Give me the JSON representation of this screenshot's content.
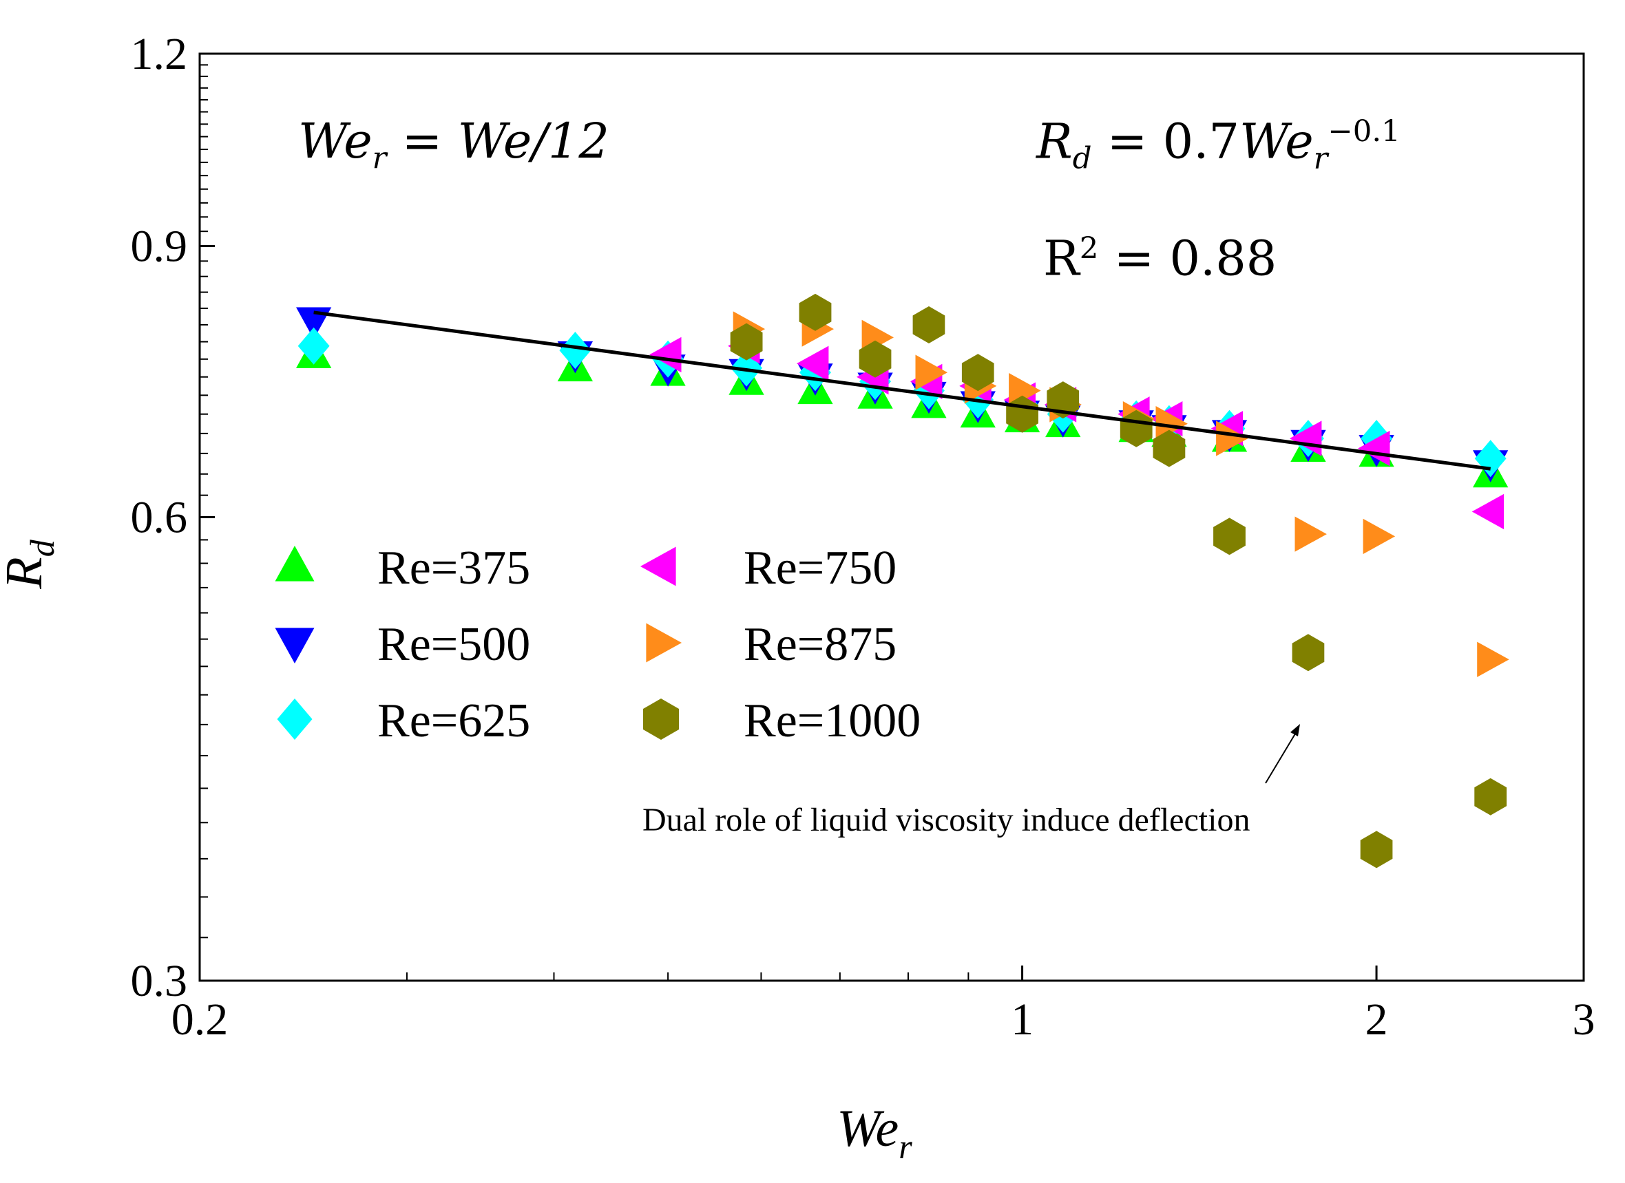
{
  "chart_data": {
    "type": "scatter",
    "title": "",
    "xlabel": "We",
    "xlabel_sub": "r",
    "ylabel": "R",
    "ylabel_sub": "d",
    "xscale": "log",
    "yscale": "log",
    "xlim": [
      0.2,
      3
    ],
    "ylim": [
      0.3,
      1.2
    ],
    "x_ticks": [
      {
        "value": 0.2,
        "label": "0.2"
      },
      {
        "value": 1,
        "label": "1"
      },
      {
        "value": 2,
        "label": "2"
      },
      {
        "value": 3,
        "label": "3"
      }
    ],
    "x_minor_ticks": [
      0.3,
      0.4,
      0.5,
      0.6,
      0.7,
      0.8,
      0.9
    ],
    "y_ticks": [
      {
        "value": 0.3,
        "label": "0.3"
      },
      {
        "value": 0.6,
        "label": "0.6"
      },
      {
        "value": 0.9,
        "label": "0.9"
      },
      {
        "value": 1.2,
        "label": "1.2"
      }
    ],
    "y_minor_ticks": [
      0.4,
      0.5,
      0.7,
      0.8,
      1.0,
      1.1,
      0.32,
      0.34,
      0.36,
      0.38,
      0.42,
      0.44,
      0.46,
      0.48,
      0.52,
      0.54,
      0.56,
      0.58,
      0.62,
      0.64,
      0.66,
      0.68,
      0.72,
      0.74,
      0.76,
      0.78,
      0.82,
      0.84,
      0.86,
      0.88,
      0.92,
      0.94,
      0.96,
      0.98,
      1.02,
      1.04,
      1.06,
      1.08,
      1.12,
      1.14,
      1.16,
      1.18
    ],
    "grid": false,
    "legend": "lower-left, two columns",
    "series": [
      {
        "name": "Re=375",
        "color": "#00ff00",
        "marker": "triangle-up",
        "points": [
          [
            0.25,
            0.765
          ],
          [
            0.417,
            0.75
          ],
          [
            0.5,
            0.745
          ],
          [
            0.583,
            0.735
          ],
          [
            0.667,
            0.725
          ],
          [
            0.75,
            0.72
          ],
          [
            0.833,
            0.71
          ],
          [
            0.917,
            0.7
          ],
          [
            1.0,
            0.695
          ],
          [
            1.083,
            0.69
          ],
          [
            1.25,
            0.685
          ],
          [
            1.333,
            0.68
          ],
          [
            1.5,
            0.675
          ],
          [
            1.75,
            0.665
          ],
          [
            2.0,
            0.66
          ],
          [
            2.5,
            0.64
          ]
        ]
      },
      {
        "name": "Re=500",
        "color": "#0000ff",
        "marker": "triangle-down",
        "points": [
          [
            0.25,
            0.805
          ],
          [
            0.417,
            0.765
          ],
          [
            0.5,
            0.75
          ],
          [
            0.583,
            0.745
          ],
          [
            0.667,
            0.74
          ],
          [
            0.75,
            0.73
          ],
          [
            0.833,
            0.72
          ],
          [
            0.917,
            0.71
          ],
          [
            1.0,
            0.7
          ],
          [
            1.083,
            0.695
          ],
          [
            1.25,
            0.69
          ],
          [
            1.333,
            0.685
          ],
          [
            1.5,
            0.68
          ],
          [
            1.75,
            0.67
          ],
          [
            2.0,
            0.665
          ],
          [
            2.5,
            0.65
          ]
        ]
      },
      {
        "name": "Re=625",
        "color": "#00ffff",
        "marker": "diamond",
        "points": [
          [
            0.25,
            0.775
          ],
          [
            0.417,
            0.77
          ],
          [
            0.5,
            0.76
          ],
          [
            0.583,
            0.75
          ],
          [
            0.667,
            0.745
          ],
          [
            0.75,
            0.735
          ],
          [
            0.833,
            0.725
          ],
          [
            0.917,
            0.715
          ],
          [
            1.0,
            0.71
          ],
          [
            1.083,
            0.7
          ],
          [
            1.25,
            0.695
          ],
          [
            1.333,
            0.69
          ],
          [
            1.5,
            0.685
          ],
          [
            1.75,
            0.675
          ],
          [
            2.0,
            0.675
          ],
          [
            2.5,
            0.655
          ]
        ]
      },
      {
        "name": "Re=750",
        "color": "#ff00ff",
        "marker": "triangle-left",
        "points": [
          [
            0.5,
            0.765
          ],
          [
            0.583,
            0.775
          ],
          [
            0.667,
            0.755
          ],
          [
            0.75,
            0.74
          ],
          [
            0.833,
            0.735
          ],
          [
            0.917,
            0.73
          ],
          [
            1.0,
            0.715
          ],
          [
            1.083,
            0.71
          ],
          [
            1.25,
            0.7
          ],
          [
            1.333,
            0.695
          ],
          [
            1.5,
            0.685
          ],
          [
            1.75,
            0.675
          ],
          [
            2.0,
            0.665
          ],
          [
            2.5,
            0.605
          ]
        ]
      },
      {
        "name": "Re=875",
        "color": "#ff8c1a",
        "marker": "triangle-right",
        "points": [
          [
            0.583,
            0.795
          ],
          [
            0.667,
            0.795
          ],
          [
            0.75,
            0.785
          ],
          [
            0.833,
            0.745
          ],
          [
            0.917,
            0.73
          ],
          [
            1.0,
            0.725
          ],
          [
            1.083,
            0.71
          ],
          [
            1.25,
            0.695
          ],
          [
            1.333,
            0.69
          ],
          [
            1.5,
            0.675
          ],
          [
            1.75,
            0.585
          ],
          [
            2.0,
            0.583
          ],
          [
            2.5,
            0.485
          ]
        ]
      },
      {
        "name": "Re=1000",
        "color": "#808000",
        "marker": "hexagon",
        "points": [
          [
            0.583,
            0.78
          ],
          [
            0.667,
            0.815
          ],
          [
            0.75,
            0.76
          ],
          [
            0.833,
            0.8
          ],
          [
            0.917,
            0.745
          ],
          [
            1.0,
            0.7
          ],
          [
            1.083,
            0.715
          ],
          [
            1.25,
            0.685
          ],
          [
            1.333,
            0.665
          ],
          [
            1.5,
            0.583
          ],
          [
            1.75,
            0.49
          ],
          [
            2.0,
            0.365
          ],
          [
            2.5,
            0.395
          ]
        ]
      }
    ],
    "fit_line": {
      "from": [
        0.25,
        0.815
      ],
      "to": [
        2.5,
        0.645
      ],
      "color": "#000000"
    }
  },
  "annotations": {
    "we_def": {
      "lhs": "We",
      "lhs_sub": "r",
      "eq": " = ",
      "rhs": "We/12"
    },
    "fit_eq": {
      "lhs": "R",
      "lhs_sub": "d",
      "eq": " = 0.7",
      "rhs": "We",
      "rhs_sub": "r",
      "rhs_sup": "−0.1"
    },
    "r2": {
      "lhs": "R",
      "sup": "2",
      "eq": " = 0.88"
    },
    "note": "Dual role of liquid viscosity induce deflection"
  }
}
